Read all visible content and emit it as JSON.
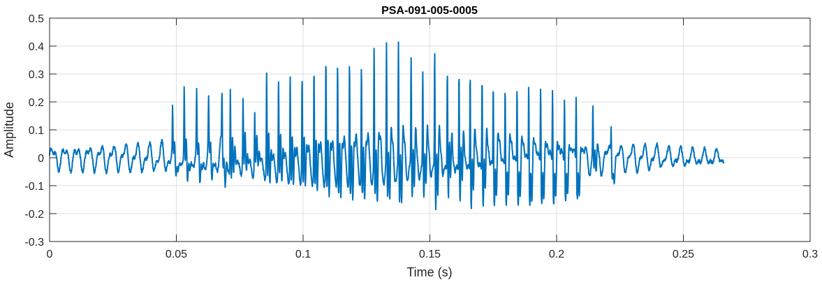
{
  "chart_data": {
    "type": "line",
    "title": "PSA-091-005-0005",
    "xlabel": "Time (s)",
    "ylabel": "Amplitude",
    "xlim": [
      0,
      0.3
    ],
    "ylim": [
      -0.3,
      0.5
    ],
    "xticks": [
      "0",
      "0.05",
      "0.1",
      "0.15",
      "0.2",
      "0.25",
      "0.3"
    ],
    "xtick_values": [
      0,
      0.05,
      0.1,
      0.15,
      0.2,
      0.25,
      0.3
    ],
    "yticks": [
      "-0.3",
      "-0.2",
      "-0.1",
      "0",
      "0.1",
      "0.2",
      "0.3",
      "0.4",
      "0.5"
    ],
    "ytick_values": [
      -0.3,
      -0.2,
      -0.1,
      0,
      0.1,
      0.2,
      0.3,
      0.4,
      0.5
    ],
    "grid": true,
    "line_color": "#0072BD",
    "signal_end_time": 0.266,
    "pitch_peaks": [
      [
        0.0485,
        0.15
      ],
      [
        0.0531,
        0.22
      ],
      [
        0.058,
        0.19
      ],
      [
        0.0627,
        0.16
      ],
      [
        0.068,
        0.18
      ],
      [
        0.0713,
        0.28
      ],
      [
        0.0763,
        0.22
      ],
      [
        0.0809,
        0.18
      ],
      [
        0.0856,
        0.33
      ],
      [
        0.0903,
        0.31
      ],
      [
        0.0949,
        0.34
      ],
      [
        0.0996,
        0.34
      ],
      [
        0.1043,
        0.37
      ],
      [
        0.109,
        0.4
      ],
      [
        0.1136,
        0.4
      ],
      [
        0.1183,
        0.4
      ],
      [
        0.123,
        0.38
      ],
      [
        0.128,
        0.41
      ],
      [
        0.1329,
        0.42
      ],
      [
        0.1376,
        0.43
      ],
      [
        0.1426,
        0.38
      ],
      [
        0.1472,
        0.35
      ],
      [
        0.1519,
        0.43
      ],
      [
        0.1569,
        0.37
      ],
      [
        0.1615,
        0.37
      ],
      [
        0.1659,
        0.36
      ],
      [
        0.1706,
        0.35
      ],
      [
        0.175,
        0.31
      ],
      [
        0.1797,
        0.3
      ],
      [
        0.1844,
        0.3
      ],
      [
        0.189,
        0.3
      ],
      [
        0.1937,
        0.29
      ],
      [
        0.1984,
        0.28
      ],
      [
        0.2031,
        0.25
      ],
      [
        0.2077,
        0.24
      ],
      [
        0.2143,
        0.17
      ],
      [
        0.2215,
        0.1
      ]
    ]
  }
}
